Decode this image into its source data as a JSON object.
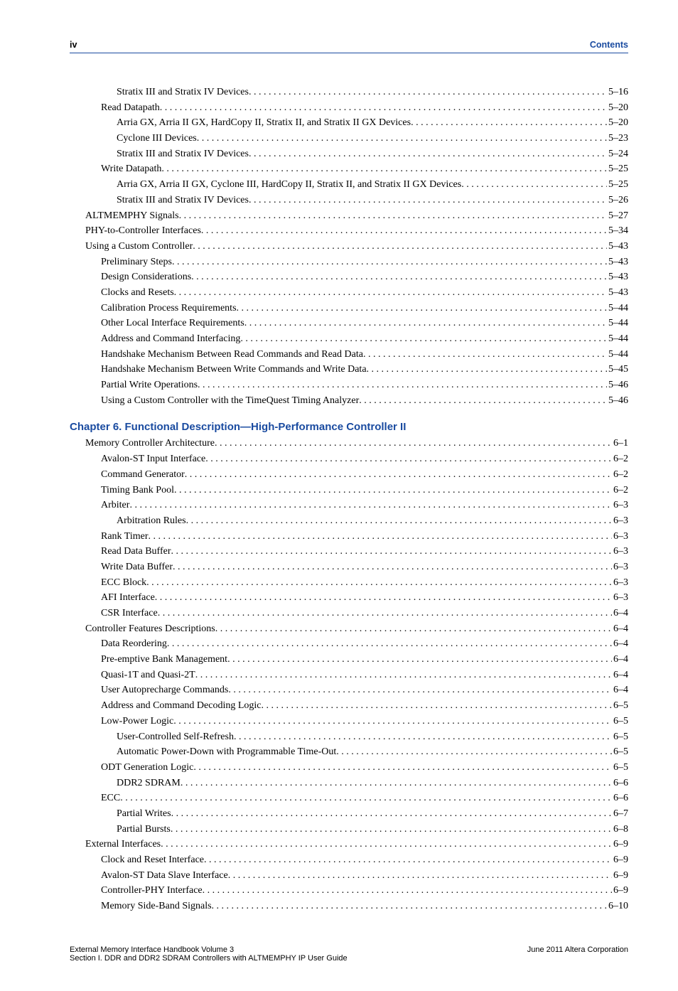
{
  "colors": {
    "accent": "#1a4ba0",
    "text": "#000000",
    "background": "#ffffff"
  },
  "typography": {
    "body_font": "Palatino Linotype / serif",
    "label_font": "Helvetica / sans-serif",
    "body_size_pt": 10.5,
    "heading_size_pt": 11,
    "footer_size_pt": 8
  },
  "header": {
    "page_number": "iv",
    "section_label": "Contents"
  },
  "toc": {
    "section1": {
      "entries": [
        {
          "indent": 4,
          "label": "Stratix III and Stratix IV Devices",
          "page": "5–16"
        },
        {
          "indent": 3,
          "label": "Read Datapath",
          "page": "5–20"
        },
        {
          "indent": 4,
          "label": "Arria GX, Arria II GX, HardCopy II, Stratix II, and Stratix II GX Devices",
          "page": "5–20"
        },
        {
          "indent": 4,
          "label": "Cyclone III Devices",
          "page": "5–23"
        },
        {
          "indent": 4,
          "label": "Stratix III and Stratix IV Devices",
          "page": "5–24"
        },
        {
          "indent": 3,
          "label": "Write Datapath",
          "page": "5–25"
        },
        {
          "indent": 4,
          "label": "Arria GX, Arria II GX, Cyclone III, HardCopy II, Stratix II, and Stratix II GX Devices",
          "page": "5–25"
        },
        {
          "indent": 4,
          "label": "Stratix III and Stratix IV Devices",
          "page": "5–26"
        },
        {
          "indent": 2,
          "label": "ALTMEMPHY Signals",
          "page": "5–27"
        },
        {
          "indent": 2,
          "label": "PHY-to-Controller Interfaces",
          "page": "5–34"
        },
        {
          "indent": 2,
          "label": "Using a Custom Controller",
          "page": "5–43"
        },
        {
          "indent": 3,
          "label": "Preliminary Steps",
          "page": "5–43"
        },
        {
          "indent": 3,
          "label": "Design Considerations",
          "page": "5–43"
        },
        {
          "indent": 3,
          "label": "Clocks and Resets",
          "page": "5–43"
        },
        {
          "indent": 3,
          "label": "Calibration Process Requirements",
          "page": "5–44"
        },
        {
          "indent": 3,
          "label": "Other Local Interface Requirements",
          "page": "5–44"
        },
        {
          "indent": 3,
          "label": "Address and Command Interfacing",
          "page": "5–44"
        },
        {
          "indent": 3,
          "label": "Handshake Mechanism Between Read Commands and Read Data",
          "page": "5–44"
        },
        {
          "indent": 3,
          "label": "Handshake Mechanism Between Write Commands and Write Data",
          "page": "5–45"
        },
        {
          "indent": 3,
          "label": "Partial Write Operations",
          "page": "5–46"
        },
        {
          "indent": 3,
          "label": "Using a Custom Controller with the TimeQuest Timing Analyzer",
          "page": "5–46"
        }
      ]
    },
    "chapter_heading": "Chapter 6.  Functional Description—High-Performance Controller II",
    "section2": {
      "entries": [
        {
          "indent": 2,
          "label": "Memory Controller Architecture",
          "page": "6–1"
        },
        {
          "indent": 3,
          "label": "Avalon-ST Input Interface",
          "page": "6–2"
        },
        {
          "indent": 3,
          "label": "Command Generator",
          "page": "6–2"
        },
        {
          "indent": 3,
          "label": "Timing Bank Pool",
          "page": "6–2"
        },
        {
          "indent": 3,
          "label": "Arbiter",
          "page": "6–3"
        },
        {
          "indent": 4,
          "label": "Arbitration Rules",
          "page": "6–3"
        },
        {
          "indent": 3,
          "label": "Rank Timer",
          "page": "6–3"
        },
        {
          "indent": 3,
          "label": "Read Data Buffer",
          "page": "6–3"
        },
        {
          "indent": 3,
          "label": "Write Data Buffer",
          "page": "6–3"
        },
        {
          "indent": 3,
          "label": "ECC Block",
          "page": "6–3"
        },
        {
          "indent": 3,
          "label": "AFI Interface",
          "page": "6–3"
        },
        {
          "indent": 3,
          "label": "CSR Interface",
          "page": "6–4"
        },
        {
          "indent": 2,
          "label": "Controller Features Descriptions",
          "page": "6–4"
        },
        {
          "indent": 3,
          "label": "Data Reordering",
          "page": "6–4"
        },
        {
          "indent": 3,
          "label": "Pre-emptive Bank Management",
          "page": "6–4"
        },
        {
          "indent": 3,
          "label": "Quasi-1T and Quasi-2T",
          "page": "6–4"
        },
        {
          "indent": 3,
          "label": "User Autoprecharge Commands",
          "page": "6–4"
        },
        {
          "indent": 3,
          "label": "Address and Command Decoding Logic",
          "page": "6–5"
        },
        {
          "indent": 3,
          "label": "Low-Power Logic",
          "page": "6–5"
        },
        {
          "indent": 4,
          "label": "User-Controlled Self-Refresh",
          "page": "6–5"
        },
        {
          "indent": 4,
          "label": "Automatic Power-Down with Programmable Time-Out",
          "page": "6–5"
        },
        {
          "indent": 3,
          "label": "ODT Generation Logic",
          "page": "6–5"
        },
        {
          "indent": 4,
          "label": "DDR2 SDRAM",
          "page": "6–6"
        },
        {
          "indent": 3,
          "label": "ECC",
          "page": "6–6"
        },
        {
          "indent": 4,
          "label": "Partial Writes",
          "page": "6–7"
        },
        {
          "indent": 4,
          "label": "Partial Bursts",
          "page": "6–8"
        },
        {
          "indent": 2,
          "label": "External Interfaces",
          "page": "6–9"
        },
        {
          "indent": 3,
          "label": "Clock and Reset Interface",
          "page": "6–9"
        },
        {
          "indent": 3,
          "label": "Avalon-ST Data Slave Interface",
          "page": "6–9"
        },
        {
          "indent": 3,
          "label": "Controller-PHY Interface",
          "page": "6–9"
        },
        {
          "indent": 3,
          "label": "Memory Side-Band Signals",
          "page": "6–10"
        }
      ]
    }
  },
  "footer": {
    "left_line1": "External Memory Interface Handbook Volume 3",
    "left_line2": "Section I. DDR and DDR2 SDRAM Controllers with ALTMEMPHY IP User Guide",
    "right": "June 2011   Altera Corporation"
  }
}
